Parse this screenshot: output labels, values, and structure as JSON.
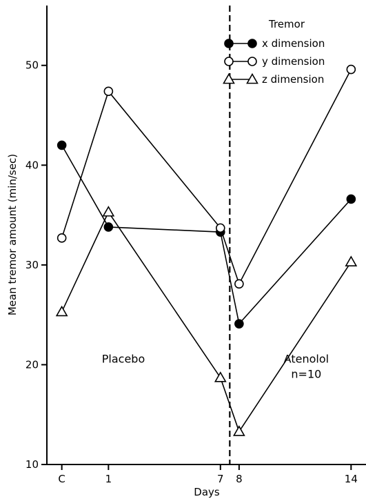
{
  "chart_data": {
    "type": "line",
    "xlabel": "Days",
    "ylabel": "Mean tremor amount (min/sec)",
    "ylim": [
      10,
      56
    ],
    "yticks": [
      10,
      20,
      30,
      40,
      50
    ],
    "xticks": [
      {
        "value": -1.5,
        "label": "C"
      },
      {
        "value": 1,
        "label": "1"
      },
      {
        "value": 7,
        "label": "7"
      },
      {
        "value": 8,
        "label": "8"
      },
      {
        "value": 14,
        "label": "14"
      }
    ],
    "xlim": [
      -2.3,
      14.8
    ],
    "divider_x": 7.5,
    "legend": {
      "title": "Tremor",
      "position": "top-right"
    },
    "series": [
      {
        "name": "x dimension",
        "marker": "filled-circle",
        "x": [
          -1.5,
          1,
          7,
          8,
          14
        ],
        "y": [
          42.0,
          33.8,
          33.3,
          24.1,
          36.6
        ]
      },
      {
        "name": "y dimension",
        "marker": "open-circle",
        "x": [
          -1.5,
          1,
          7,
          8,
          14
        ],
        "y": [
          32.7,
          47.4,
          33.7,
          28.1,
          49.6
        ]
      },
      {
        "name": "z dimension",
        "marker": "open-triangle",
        "x": [
          -1.5,
          1,
          7,
          8,
          14
        ],
        "y": [
          25.3,
          35.3,
          18.7,
          13.3,
          30.3
        ]
      }
    ],
    "annotations": [
      {
        "lines": [
          "Placebo"
        ],
        "x": 1.8,
        "y": 20.2
      },
      {
        "lines": [
          "Atenolol",
          "n=10"
        ],
        "x": 11.6,
        "y": 20.2
      }
    ]
  }
}
